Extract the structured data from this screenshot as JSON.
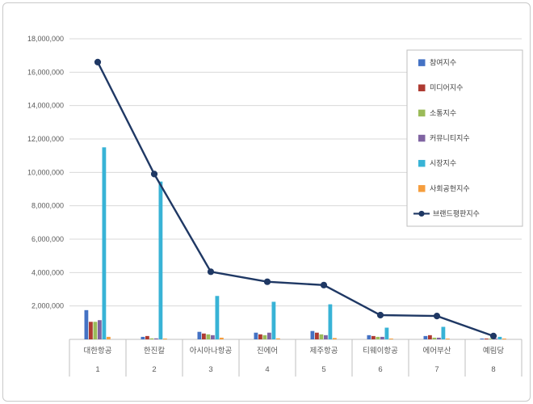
{
  "chart_data": {
    "type": "bar",
    "subtype": "grouped-bars-with-line-overlay",
    "title": "",
    "xlabel": "",
    "ylabel": "",
    "ylim": [
      0,
      18000000
    ],
    "ytick_step": 2000000,
    "ytick_labels": [
      "2,000,000",
      "4,000,000",
      "6,000,000",
      "8,000,000",
      "10,000,000",
      "12,000,000",
      "14,000,000",
      "16,000,000",
      "18,000,000"
    ],
    "grid": true,
    "legend_position": "right-top",
    "categories": [
      "대한항공",
      "한진칼",
      "아시아나항공",
      "진에어",
      "제주항공",
      "티웨이항공",
      "에어부산",
      "예림당"
    ],
    "ranks": [
      "1",
      "2",
      "3",
      "4",
      "5",
      "6",
      "7",
      "8"
    ],
    "series": [
      {
        "name": "참여지수",
        "render": "bar",
        "color": "#4472C4",
        "values": [
          1750000,
          150000,
          450000,
          400000,
          500000,
          250000,
          200000,
          50000
        ]
      },
      {
        "name": "미디어지수",
        "render": "bar",
        "color": "#AE3B32",
        "values": [
          1050000,
          200000,
          350000,
          300000,
          400000,
          200000,
          250000,
          50000
        ]
      },
      {
        "name": "소통지수",
        "render": "bar",
        "color": "#9BBB59",
        "values": [
          1050000,
          60000,
          300000,
          250000,
          300000,
          150000,
          100000,
          30000
        ]
      },
      {
        "name": "커뮤니티지수",
        "render": "bar",
        "color": "#8064A2",
        "values": [
          1150000,
          60000,
          250000,
          400000,
          250000,
          150000,
          100000,
          30000
        ]
      },
      {
        "name": "시장지수",
        "render": "bar",
        "color": "#38B3D6",
        "values": [
          11500000,
          9450000,
          2600000,
          2250000,
          2100000,
          700000,
          750000,
          150000
        ]
      },
      {
        "name": "사회공헌지수",
        "render": "bar",
        "color": "#F59D3D",
        "values": [
          150000,
          30000,
          100000,
          60000,
          80000,
          30000,
          30000,
          20000
        ]
      },
      {
        "name": "브랜드평판지수",
        "render": "line",
        "color": "#1F3864",
        "values": [
          16600000,
          9900000,
          4050000,
          3450000,
          3250000,
          1450000,
          1400000,
          200000
        ]
      }
    ],
    "style": {
      "gridline_color": "#D9D9D9",
      "axis_color": "#BFBFBF",
      "tick_label_color": "#595959",
      "legend_text_color": "#404040",
      "legend_border_color": "#BFBFBF",
      "background": "#FFFFFF"
    }
  }
}
